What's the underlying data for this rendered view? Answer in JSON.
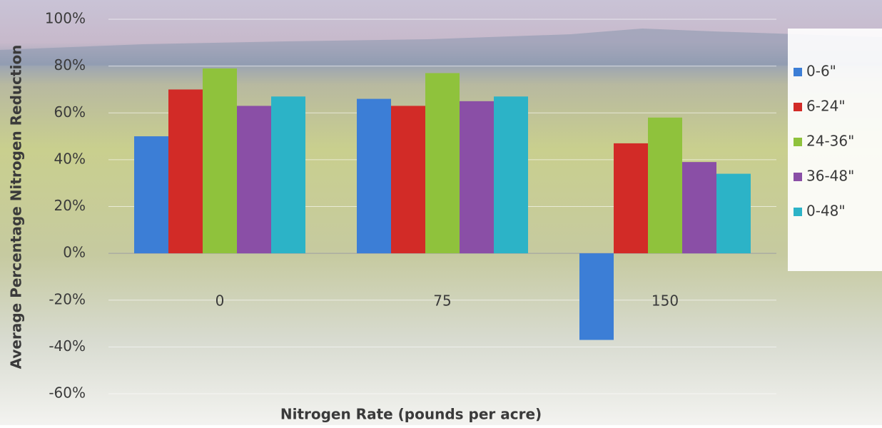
{
  "chart_data": {
    "type": "bar",
    "y_label": "Average Percentage Nitrogen Reduction",
    "x_label": "Nitrogen Rate (pounds per acre)",
    "categories": [
      "0",
      "75",
      "150"
    ],
    "series": [
      {
        "name": "0-6\"",
        "color": "#3c7ed6",
        "values": [
          50,
          66,
          -37
        ]
      },
      {
        "name": "6-24\"",
        "color": "#d22b27",
        "values": [
          70,
          63,
          47
        ]
      },
      {
        "name": "24-36\"",
        "color": "#8fc23c",
        "values": [
          79,
          77,
          58
        ]
      },
      {
        "name": "36-48\"",
        "color": "#8a4fa6",
        "values": [
          63,
          65,
          39
        ]
      },
      {
        "name": "0-48\"",
        "color": "#2cb3c7",
        "values": [
          67,
          67,
          34
        ]
      }
    ],
    "ylim": [
      -60,
      100
    ],
    "yticks": [
      {
        "value": -60,
        "label": "-60%"
      },
      {
        "value": -40,
        "label": "-40%"
      },
      {
        "value": -20,
        "label": "-20%"
      },
      {
        "value": 0,
        "label": "0%"
      },
      {
        "value": 20,
        "label": "20%"
      },
      {
        "value": 40,
        "label": "40%"
      },
      {
        "value": 60,
        "label": "60%"
      },
      {
        "value": 80,
        "label": "80%"
      },
      {
        "value": 100,
        "label": "100%"
      }
    ],
    "grid": true,
    "legend": "right"
  }
}
